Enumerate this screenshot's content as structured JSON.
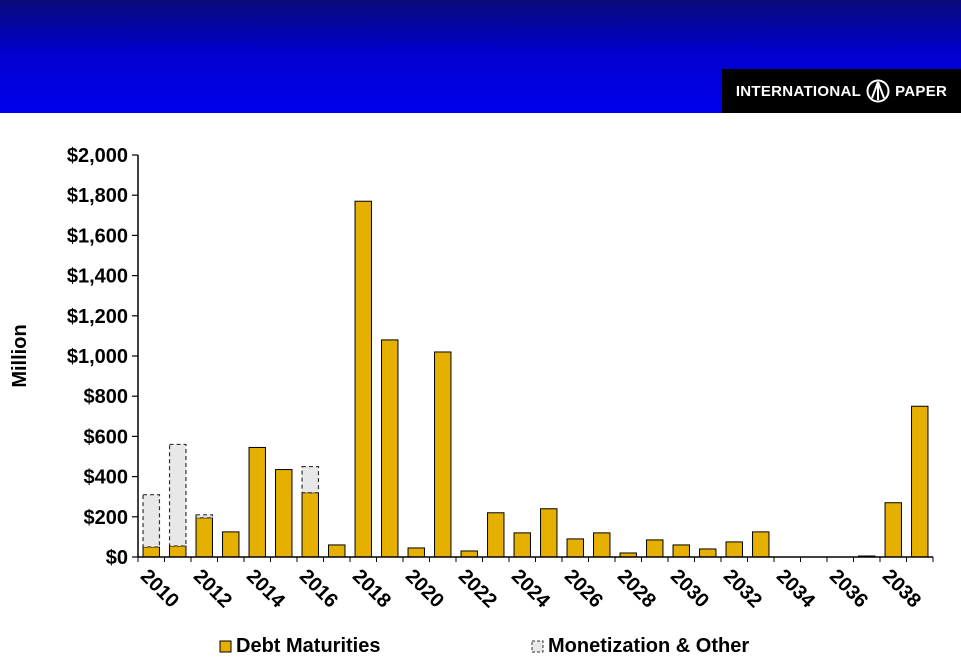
{
  "header": {
    "logo_left": "INTERNATIONAL",
    "logo_right": "PAPER",
    "banner_color": "#0000dd"
  },
  "chart_data": {
    "type": "bar",
    "stacked": true,
    "ylabel": "Million",
    "ylim": [
      0,
      2000
    ],
    "yticks": [
      "$0",
      "$200",
      "$400",
      "$600",
      "$800",
      "$1,000",
      "$1,200",
      "$1,400",
      "$1,600",
      "$1,800",
      "$2,000"
    ],
    "categories": [
      "2010",
      "2011",
      "2012",
      "2013",
      "2014",
      "2015",
      "2016",
      "2017",
      "2018",
      "2019",
      "2020",
      "2021",
      "2022",
      "2023",
      "2024",
      "2025",
      "2026",
      "2027",
      "2028",
      "2029",
      "2030",
      "2031",
      "2032",
      "2033",
      "2034",
      "2035",
      "2036",
      "2037",
      "2038",
      "2039"
    ],
    "xtick_labels": [
      "2010",
      "2012",
      "2014",
      "2016",
      "2018",
      "2020",
      "2022",
      "2024",
      "2026",
      "2028",
      "2030",
      "2032",
      "2034",
      "2036",
      "2038"
    ],
    "series": [
      {
        "name": "Debt Maturities",
        "color": "#e6b000",
        "values": [
          50,
          55,
          195,
          125,
          545,
          435,
          320,
          60,
          1770,
          1080,
          45,
          1020,
          30,
          220,
          120,
          240,
          90,
          120,
          20,
          85,
          60,
          40,
          75,
          125,
          0,
          0,
          0,
          5,
          270,
          750
        ]
      },
      {
        "name": "Monetization & Other",
        "color": "#e8e8e8",
        "values": [
          260,
          505,
          15,
          0,
          0,
          0,
          130,
          0,
          0,
          0,
          0,
          0,
          0,
          0,
          0,
          0,
          0,
          0,
          0,
          0,
          0,
          0,
          0,
          0,
          0,
          0,
          0,
          0,
          0,
          0
        ]
      }
    ],
    "legend_position": "bottom"
  }
}
